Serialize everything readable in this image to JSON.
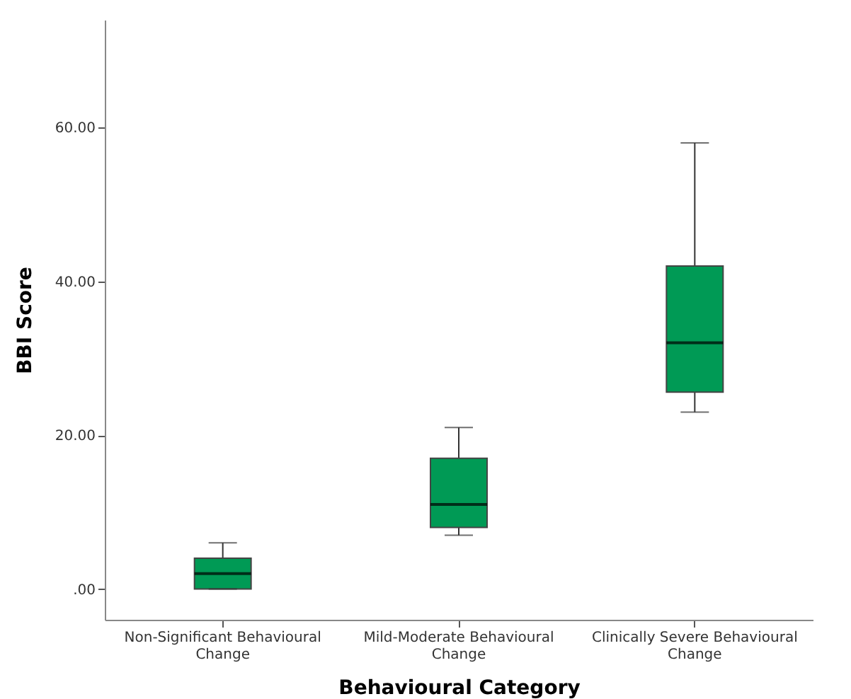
{
  "chart_data": {
    "type": "box",
    "xlabel": "Behavioural Category",
    "ylabel": "BBI Score",
    "categories": [
      "Non-Significant Behavioural Change",
      "Mild-Moderate Behavioural Change",
      "Clinically Severe Behavioural Change"
    ],
    "boxes": [
      {
        "low": 0,
        "q1": 0,
        "median": 2,
        "q3": 4,
        "high": 6
      },
      {
        "low": 7,
        "q1": 8,
        "median": 11,
        "q3": 17,
        "high": 21
      },
      {
        "low": 23,
        "q1": 25.6,
        "median": 32,
        "q3": 42,
        "high": 58
      }
    ],
    "color": "#009a55",
    "ylim": [
      -4,
      74
    ],
    "yticks": [
      {
        "value": 0,
        "label": ".00"
      },
      {
        "value": 20,
        "label": "20.00"
      },
      {
        "value": 40,
        "label": "40.00"
      },
      {
        "value": 60,
        "label": "60.00"
      }
    ],
    "grid": false
  }
}
